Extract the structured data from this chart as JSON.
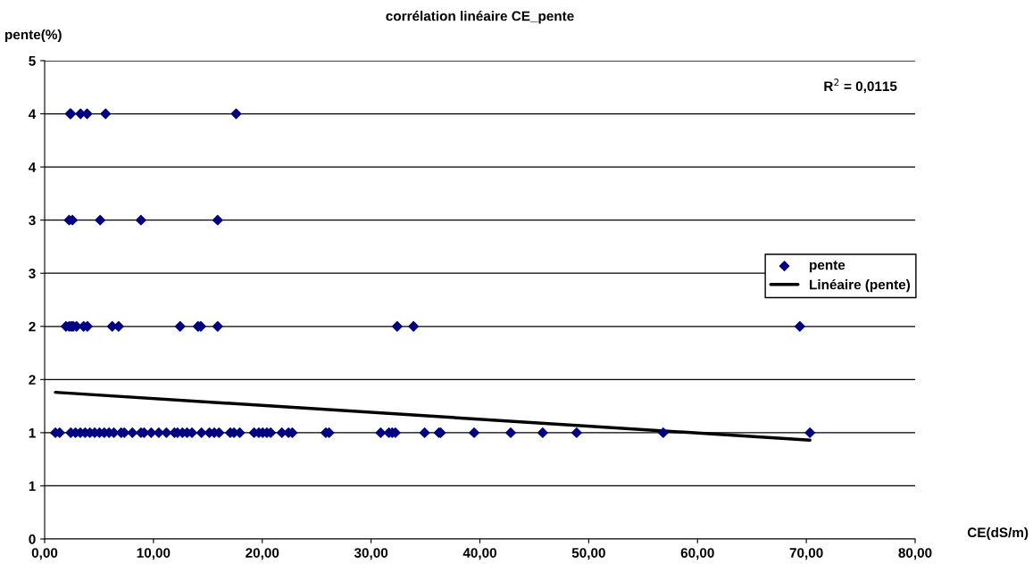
{
  "chart_data": {
    "type": "scatter",
    "title": "corrélation linéaire CE_pente",
    "xlabel": "CE(dS/m)",
    "ylabel": "pente(%)",
    "annotations": [
      "R$^{2}$ = 0,0115"
    ],
    "xlim": [
      0,
      80
    ],
    "xticks": [
      {
        "value": 0,
        "label": "0,00"
      },
      {
        "value": 10,
        "label": "10,00"
      },
      {
        "value": 20,
        "label": "20,00"
      },
      {
        "value": 30,
        "label": "30,00"
      },
      {
        "value": 40,
        "label": "40,00"
      },
      {
        "value": 50,
        "label": "50,00"
      },
      {
        "value": 60,
        "label": "60,00"
      },
      {
        "value": 70,
        "label": "70,00"
      },
      {
        "value": 80,
        "label": "80,00"
      }
    ],
    "ylim": [
      0,
      4.5
    ],
    "yticks": [
      0,
      {
        "value": 0.5,
        "label": "1"
      },
      {
        "value": 1,
        "label": "1"
      },
      {
        "value": 1.5,
        "label": "2"
      },
      {
        "value": 2,
        "label": "2"
      },
      {
        "value": 2.5,
        "label": "3"
      },
      {
        "value": 3,
        "label": "3"
      },
      {
        "value": 3.5,
        "label": "4"
      },
      {
        "value": 4,
        "label": "4"
      },
      {
        "value": 4.5,
        "label": "5"
      }
    ],
    "grid": "y",
    "legend": "right",
    "marker": "diamond",
    "series": [
      {
        "name": "pente",
        "color": "#000080",
        "x": [
          2.35,
          2.4,
          3.3,
          3.9,
          5.6,
          17.6,
          2.25,
          2.55,
          5.1,
          8.85,
          15.9,
          1.96,
          2.26,
          2.46,
          2.63,
          2.93,
          3.58,
          3.93,
          6.21,
          6.8,
          12.45,
          14.1,
          14.35,
          15.9,
          32.4,
          33.9,
          69.4,
          0.99,
          1.38,
          2.4,
          2.84,
          3.28,
          3.72,
          4.16,
          4.6,
          5.04,
          5.48,
          5.92,
          6.36,
          7.03,
          7.32,
          8.06,
          8.85,
          9.14,
          9.79,
          10.49,
          11.19,
          11.93,
          12.21,
          12.66,
          13.09,
          13.54,
          14.41,
          15.14,
          15.59,
          16.03,
          17.06,
          17.4,
          17.93,
          19.25,
          19.69,
          20.04,
          20.42,
          20.77,
          21.8,
          22.41,
          22.76,
          25.84,
          26.14,
          30.88,
          31.64,
          31.94,
          32.23,
          34.92,
          36.24,
          36.39,
          39.47,
          42.83,
          45.77,
          48.89,
          56.85,
          70.33
        ],
        "values": [
          4,
          4,
          4,
          4,
          4,
          4,
          3,
          3,
          3,
          3,
          3,
          2,
          2,
          2,
          2,
          2,
          2,
          2,
          2,
          2,
          2,
          2,
          2,
          2,
          2,
          2,
          2,
          1,
          1,
          1,
          1,
          1,
          1,
          1,
          1,
          1,
          1,
          1,
          1,
          1,
          1,
          1,
          1,
          1,
          1,
          1,
          1,
          1,
          1,
          1,
          1,
          1,
          1,
          1,
          1,
          1,
          1,
          1,
          1,
          1,
          1,
          1,
          1,
          1,
          1,
          1,
          1,
          1,
          1,
          1,
          1,
          1,
          1,
          1,
          1,
          1,
          1,
          1,
          1,
          1,
          1,
          1
        ]
      },
      {
        "name": "Linéaire (pente)",
        "type": "line",
        "color": "#000000",
        "marker": "none",
        "x": [
          0.99,
          70.33
        ],
        "values": [
          1.38,
          0.93
        ]
      }
    ]
  }
}
